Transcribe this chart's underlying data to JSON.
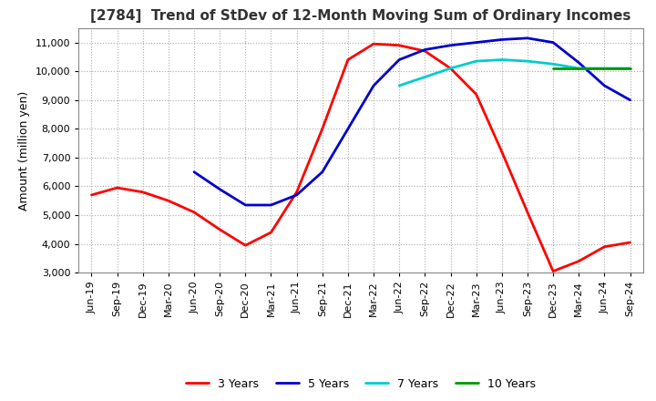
{
  "title": "[2784]  Trend of StDev of 12-Month Moving Sum of Ordinary Incomes",
  "ylabel": "Amount (million yen)",
  "ylim": [
    3000,
    11500
  ],
  "yticks": [
    3000,
    4000,
    5000,
    6000,
    7000,
    8000,
    9000,
    10000,
    11000
  ],
  "background_color": "#ffffff",
  "plot_bg_color": "#ffffff",
  "grid_color": "#aaaaaa",
  "series": {
    "3 Years": {
      "color": "#ff0000",
      "y": [
        5700,
        5950,
        5800,
        5500,
        5100,
        4500,
        3950,
        4400,
        5800,
        8000,
        10400,
        10950,
        10900,
        10700,
        10100,
        9200,
        7200,
        5100,
        3050,
        3400,
        3900,
        4050
      ]
    },
    "5 Years": {
      "color": "#0000cc",
      "y": [
        null,
        null,
        null,
        null,
        6500,
        5900,
        5350,
        5350,
        5700,
        6500,
        8000,
        9500,
        10400,
        10750,
        10900,
        11000,
        11100,
        11150,
        11000,
        10300,
        9500,
        9000
      ]
    },
    "7 Years": {
      "color": "#00cccc",
      "y": [
        null,
        null,
        null,
        null,
        null,
        null,
        null,
        null,
        null,
        null,
        null,
        null,
        9500,
        9800,
        10100,
        10350,
        10400,
        10350,
        10250,
        10100,
        10100,
        10100
      ]
    },
    "10 Years": {
      "color": "#009900",
      "y": [
        null,
        null,
        null,
        null,
        null,
        null,
        null,
        null,
        null,
        null,
        null,
        null,
        null,
        null,
        null,
        null,
        null,
        null,
        10100,
        10100,
        10100,
        10100
      ]
    }
  },
  "xtick_labels": [
    "Jun-19",
    "Sep-19",
    "Dec-19",
    "Mar-20",
    "Jun-20",
    "Sep-20",
    "Dec-20",
    "Mar-21",
    "Jun-21",
    "Sep-21",
    "Dec-21",
    "Mar-22",
    "Jun-22",
    "Sep-22",
    "Dec-22",
    "Mar-23",
    "Jun-23",
    "Sep-23",
    "Dec-23",
    "Mar-24",
    "Jun-24",
    "Sep-24"
  ],
  "title_fontsize": 11,
  "tick_fontsize": 8,
  "label_fontsize": 9,
  "legend_fontsize": 9
}
